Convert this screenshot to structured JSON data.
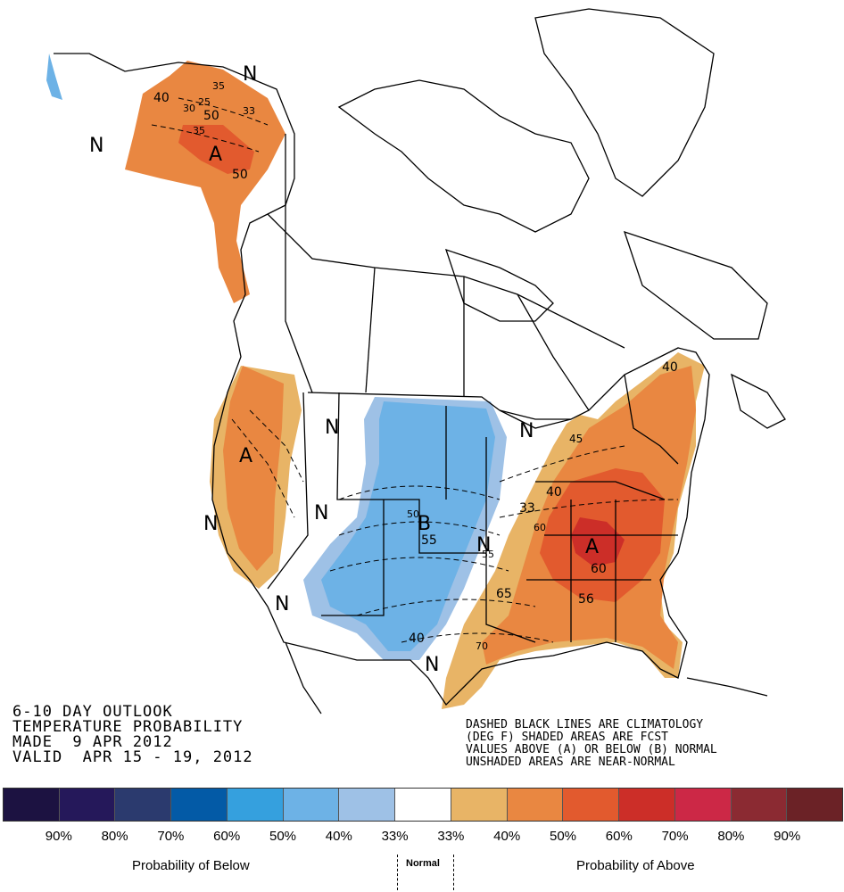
{
  "title_lines": [
    "6-10 DAY OUTLOOK",
    "TEMPERATURE PROBABILITY",
    "MADE  9 APR 2012",
    "VALID  APR 15 - 19, 2012"
  ],
  "note_lines": [
    "DASHED BLACK LINES ARE CLIMATOLOGY",
    "(DEG F) SHADED AREAS ARE FCST",
    "VALUES ABOVE (A) OR BELOW (B) NORMAL",
    "UNSHADED AREAS ARE NEAR-NORMAL"
  ],
  "map_labels": {
    "above": "A",
    "below": "B",
    "normal": "N"
  },
  "contour_labels": [
    "40",
    "35",
    "25",
    "30",
    "33",
    "50",
    "35",
    "50",
    "45",
    "40",
    "55",
    "60",
    "56",
    "33",
    "65",
    "70",
    "40",
    "40",
    "50",
    "55",
    "60"
  ],
  "legend": {
    "swatch_colors": [
      "#1c1241",
      "#25185a",
      "#2b3a6e",
      "#035aa6",
      "#35a0de",
      "#6db2e6",
      "#9ec1e6",
      "#ffffff",
      "#e8b466",
      "#e98741",
      "#e25a2e",
      "#cc2e28",
      "#cc2846",
      "#8b2a32",
      "#6b2226"
    ],
    "ticks": [
      "90%",
      "80%",
      "70%",
      "60%",
      "50%",
      "40%",
      "33%",
      "33%",
      "40%",
      "50%",
      "60%",
      "70%",
      "80%",
      "90%"
    ],
    "below_label": "Probability of Below",
    "normal_label": "Normal",
    "above_label": "Probability of Above"
  }
}
